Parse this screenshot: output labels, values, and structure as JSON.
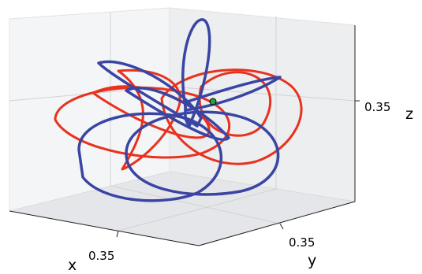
{
  "chart_data": {
    "type": "line3d",
    "title": "",
    "axes": {
      "x": {
        "label": "x",
        "ticks": [
          "0.35"
        ]
      },
      "y": {
        "label": "y",
        "ticks": [
          "0.35"
        ]
      },
      "z": {
        "label": "z",
        "ticks": [
          "0.35"
        ]
      }
    },
    "grid": true,
    "series": [
      {
        "color": "#e8321e",
        "description_free": true
      },
      {
        "color": "#3a45a3",
        "description_free": true
      }
    ],
    "marker": {
      "color": "#2ca02c"
    }
  }
}
